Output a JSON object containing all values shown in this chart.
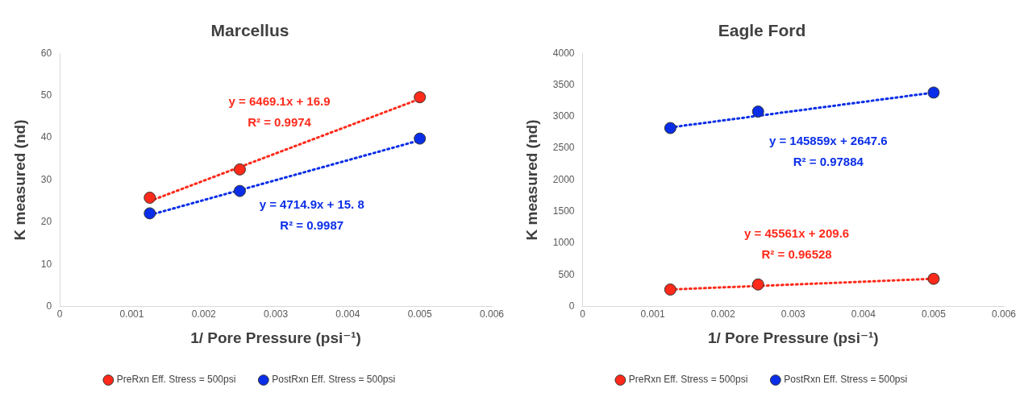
{
  "chart_data": [
    {
      "type": "scatter",
      "title": "Marcellus",
      "xlabel": "1/ Pore Pressure (psi⁻¹)",
      "ylabel": "K measured (nd)",
      "marker": "circle",
      "legend": "bottom",
      "grid": false,
      "xlim": [
        0,
        0.006
      ],
      "xticks": [
        0,
        0.001,
        0.002,
        0.003,
        0.004,
        0.005,
        0.006
      ],
      "ylim": [
        0,
        60
      ],
      "yticks": [
        0,
        10,
        20,
        30,
        40,
        50,
        60
      ],
      "series": [
        {
          "name": "PreRxn Eff. Stress = 500psi",
          "color": "#ff2a1a",
          "x": [
            0.00125,
            0.0025,
            0.005
          ],
          "values": [
            25.8,
            32.5,
            49.6
          ]
        },
        {
          "name": "PostRxn Eff. Stress = 500psi",
          "color": "#0a2ee8",
          "x": [
            0.00125,
            0.0025,
            0.005
          ],
          "values": [
            22.1,
            27.4,
            39.8
          ]
        },
        {
          "type": "line",
          "line_style": "dotted",
          "marker": "none",
          "color": "#ff2a1a",
          "x": [
            0.00125,
            0.005
          ],
          "values": [
            25.0,
            49.2
          ]
        },
        {
          "type": "line",
          "line_style": "dotted",
          "marker": "none",
          "color": "#0a2ee8",
          "x": [
            0.00125,
            0.005
          ],
          "values": [
            21.7,
            39.4
          ]
        }
      ],
      "annotations": [
        "y = 6469.1x + 16.9",
        "R² = 0.9974",
        "y = 4714.9x + 15. 8",
        "R² = 0.9987"
      ]
    },
    {
      "type": "scatter",
      "title": "Eagle Ford",
      "xlabel": "1/ Pore Pressure (psi⁻¹)",
      "ylabel": "K measured (nd)",
      "marker": "circle",
      "legend": "bottom",
      "grid": false,
      "xlim": [
        0,
        0.006
      ],
      "xticks": [
        0,
        0.001,
        0.002,
        0.003,
        0.004,
        0.005,
        0.006
      ],
      "ylim": [
        0,
        4000
      ],
      "yticks": [
        0,
        500,
        1000,
        1500,
        2000,
        2500,
        3000,
        3500,
        4000
      ],
      "series": [
        {
          "name": "PreRxn Eff. Stress = 500psi",
          "color": "#ff2a1a",
          "x": [
            0.00125,
            0.0025,
            0.005
          ],
          "values": [
            270,
            350,
            440
          ]
        },
        {
          "name": "PostRxn Eff. Stress = 500psi",
          "color": "#0a2ee8",
          "x": [
            0.00125,
            0.0025,
            0.005
          ],
          "values": [
            2820,
            3080,
            3380
          ]
        },
        {
          "type": "line",
          "line_style": "dotted",
          "marker": "none",
          "color": "#ff2a1a",
          "x": [
            0.00125,
            0.005
          ],
          "values": [
            270,
            440
          ]
        },
        {
          "type": "line",
          "line_style": "dotted",
          "marker": "none",
          "color": "#0a2ee8",
          "x": [
            0.00125,
            0.005
          ],
          "values": [
            2830,
            3380
          ]
        }
      ],
      "annotations": [
        "y = 45561x + 209.6",
        "R² = 0.96528",
        "y = 145859x + 2647.6",
        "R² = 0.97884"
      ]
    }
  ]
}
